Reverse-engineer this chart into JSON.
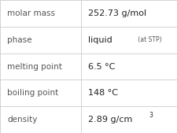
{
  "rows": [
    {
      "label": "molar mass",
      "value": "252.73 g/mol",
      "suffix": null,
      "sup": null
    },
    {
      "label": "phase",
      "value": "liquid",
      "suffix": " (at STP)",
      "sup": null
    },
    {
      "label": "melting point",
      "value": "6.5 °C",
      "suffix": null,
      "sup": null
    },
    {
      "label": "boiling point",
      "value": "148 °C",
      "suffix": null,
      "sup": null
    },
    {
      "label": "density",
      "value": "2.89 g/cm",
      "suffix": null,
      "sup": "3"
    }
  ],
  "col_split": 0.455,
  "background_color": "#ffffff",
  "border_color": "#cccccc",
  "label_color": "#555555",
  "value_color": "#222222",
  "label_fontsize": 7.5,
  "value_fontsize": 8.0,
  "suffix_fontsize": 5.5,
  "sup_fontsize": 5.5,
  "figwidth": 2.26,
  "figheight": 1.69,
  "dpi": 100
}
